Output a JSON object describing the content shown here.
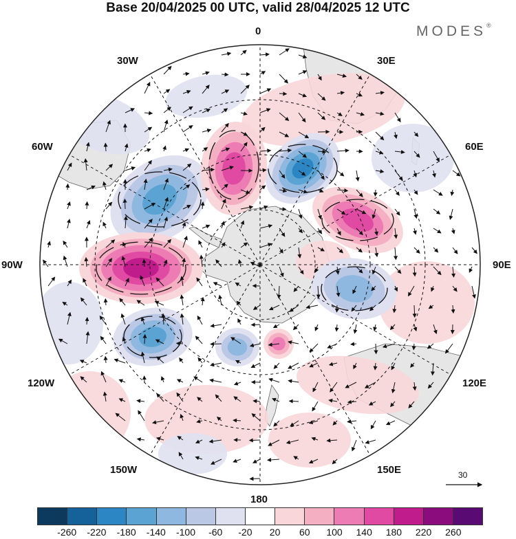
{
  "title": "Base 20/04/2025 00 UTC, valid 28/04/2025 12 UTC",
  "logo": {
    "text": "MODES",
    "mark": "®"
  },
  "map": {
    "projection": "south-polar-stereographic",
    "longitude_labels": {
      "top": "0",
      "bottom": "180",
      "left": "90W",
      "right": "90E",
      "nw1": "30W",
      "nw2": "60W",
      "ne1": "30E",
      "ne2": "60E",
      "sw1": "120W",
      "sw2": "150W",
      "se1": "120E",
      "se2": "150E"
    },
    "anomaly_centers": [
      {
        "name": "negative-south-atlantic",
        "sign": "negative",
        "level": -180
      },
      {
        "name": "negative-weddell",
        "sign": "negative",
        "level": -220
      },
      {
        "name": "positive-drake",
        "sign": "positive",
        "level": 220
      },
      {
        "name": "positive-south-atlantic-mid",
        "sign": "positive",
        "level": 180
      },
      {
        "name": "positive-indian",
        "sign": "positive",
        "level": 180
      },
      {
        "name": "negative-indian",
        "sign": "negative",
        "level": -140
      },
      {
        "name": "negative-pacific",
        "sign": "negative",
        "level": -180
      },
      {
        "name": "negative-ross",
        "sign": "negative",
        "level": -120
      },
      {
        "name": "positive-ross",
        "sign": "positive",
        "level": 140
      }
    ]
  },
  "vector_scale": {
    "value": "30"
  },
  "colorbar": {
    "ticks": [
      "-260",
      "-220",
      "-180",
      "-140",
      "-100",
      "-60",
      "-20",
      "20",
      "60",
      "100",
      "140",
      "180",
      "220",
      "260"
    ],
    "colors": [
      "#0b3a5e",
      "#15629a",
      "#2c86c4",
      "#5aa3d3",
      "#8eb8df",
      "#bac7e5",
      "#dfe1f1",
      "#ffffff",
      "#f8d6d9",
      "#f4afc3",
      "#ec7cb3",
      "#e04aa2",
      "#c11c8c",
      "#8a0c7d",
      "#5a0a73"
    ]
  }
}
